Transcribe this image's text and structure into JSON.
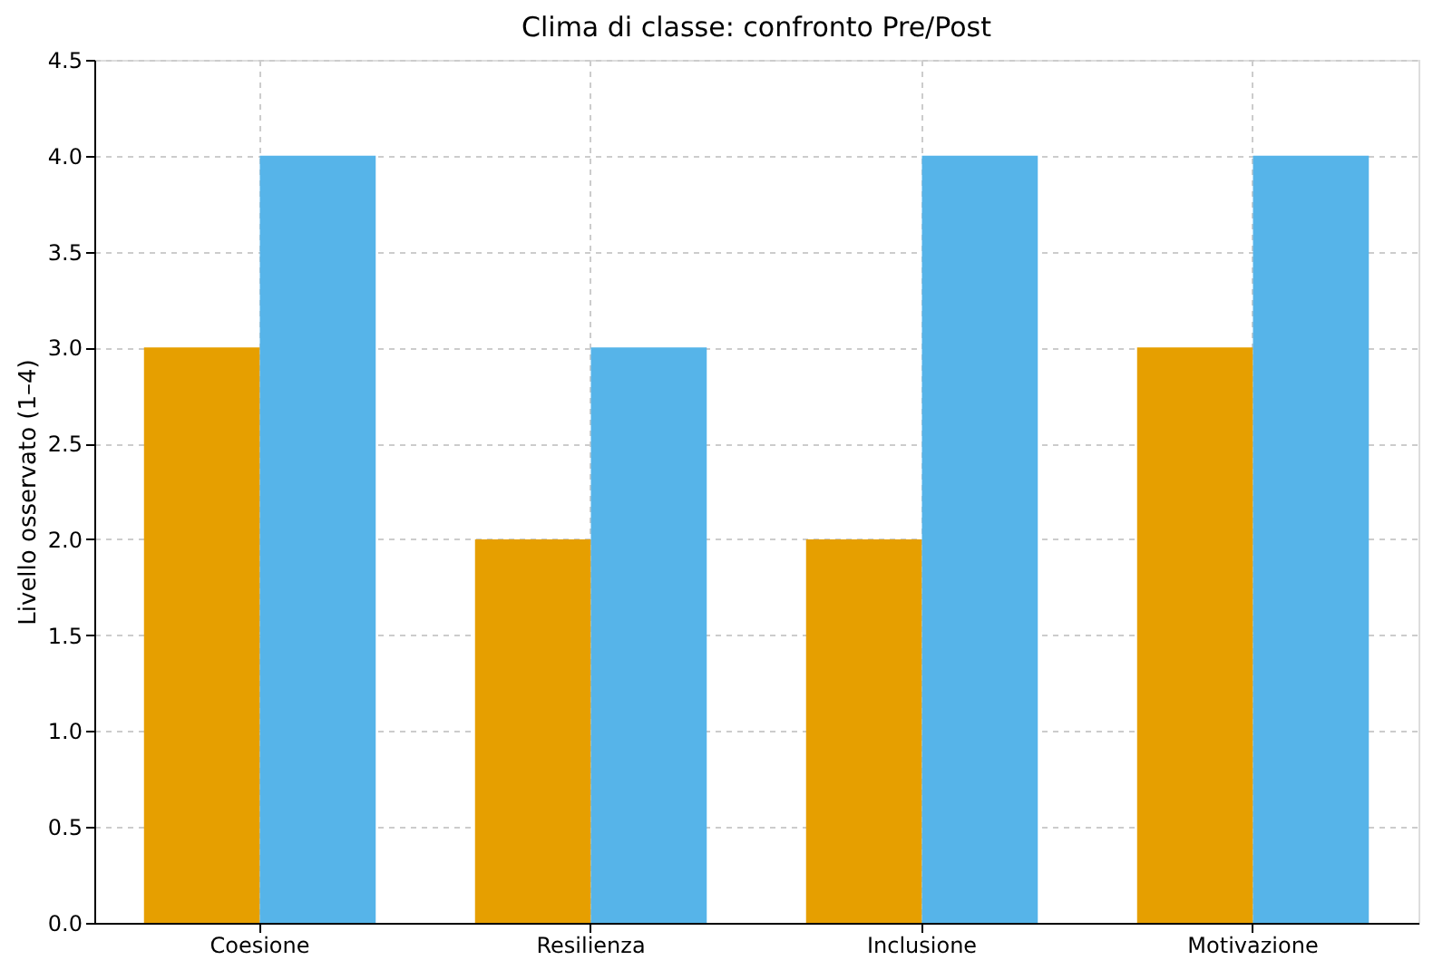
{
  "chart_data": {
    "type": "bar",
    "title": "Clima di classe: confronto Pre/Post",
    "ylabel": "Livello osservato (1–4)",
    "categories": [
      "Coesione",
      "Resilienza",
      "Inclusione",
      "Motivazione"
    ],
    "series": [
      {
        "color": "#e69f00",
        "values": [
          3,
          2,
          2,
          3
        ]
      },
      {
        "color": "#56b4e9",
        "values": [
          4,
          3,
          4,
          4
        ]
      }
    ],
    "ylim": [
      0,
      4.5
    ],
    "yticks": [
      {
        "value": 0,
        "label": "0.0"
      },
      {
        "value": 0.5,
        "label": "0.5"
      },
      {
        "value": 1,
        "label": "1.0"
      },
      {
        "value": 1.5,
        "label": "1.5"
      },
      {
        "value": 2,
        "label": "2.0"
      },
      {
        "value": 2.5,
        "label": "2.5"
      },
      {
        "value": 3,
        "label": "3.0"
      },
      {
        "value": 3.5,
        "label": "3.5"
      },
      {
        "value": 4,
        "label": "4.0"
      },
      {
        "value": 4.5,
        "label": "4.5"
      }
    ],
    "grid": true,
    "legend": false
  }
}
